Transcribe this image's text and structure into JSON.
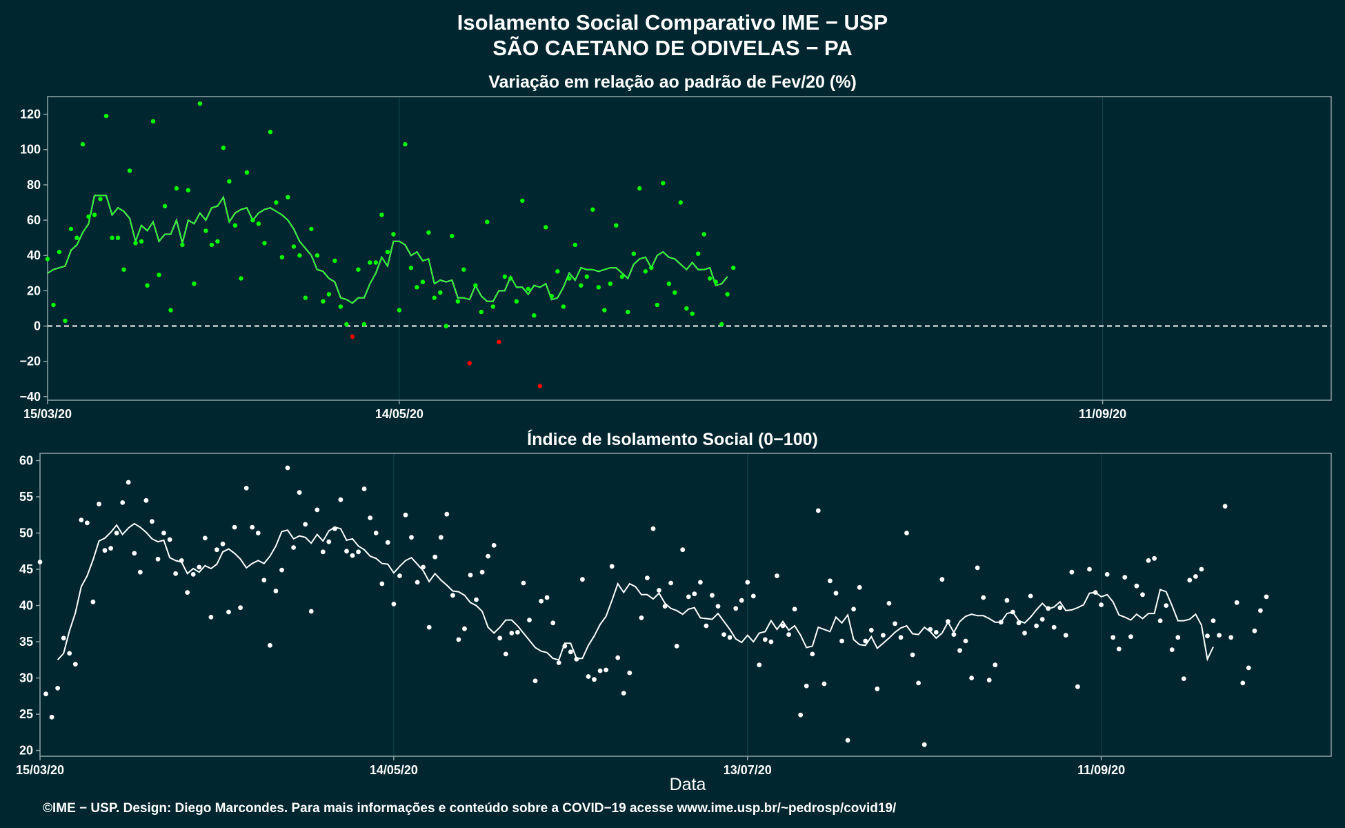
{
  "header": {
    "title_line1": "Isolamento Social Comparativo IME − USP",
    "title_line2": "SÃO CAETANO DE ODIVELAS − PA"
  },
  "footer": {
    "credit": "©IME − USP. Design: Diego Marcondes. Para mais informações e conteúdo sobre a COVID−19 acesse www.ime.usp.br/~pedrosp/covid19/"
  },
  "colors": {
    "background": "#00272f",
    "panel_border": "#8fa3a8",
    "gridline": "#12404a",
    "text": "#ffffff",
    "point_positive": "#00ff00",
    "point_negative": "#ff0000",
    "line_avg": "#ffffff",
    "line_avg_overlay": "#00ff00"
  },
  "chart_data": [
    {
      "type": "scatter",
      "title": "Variação em relação ao padrão de Fev/20 (%)",
      "xlabel": "",
      "ylabel": "",
      "x_range": [
        "2020-03-15",
        "2020-10-20"
      ],
      "ylim": [
        -42,
        130
      ],
      "y_ticks": [
        120,
        100,
        80,
        60,
        40,
        20,
        0,
        -20,
        -40
      ],
      "y_tick_labels": [
        "120",
        "100",
        "80",
        "60",
        "40",
        "20",
        "0",
        "−20",
        "−40"
      ],
      "x_ticks": [
        {
          "date": "2020-03-15",
          "label": "15/03/20"
        },
        {
          "date": "2020-05-14",
          "label": "14/05/20"
        },
        {
          "date": "2020-09-11",
          "label": "11/09/20"
        }
      ],
      "reference_line": {
        "y": 0,
        "style": "dashed"
      },
      "grid": true,
      "start_date": "2020-03-15",
      "series": [
        {
          "kind": "points",
          "values": [
            38,
            12,
            42,
            3,
            55,
            50,
            103,
            62,
            63,
            72,
            119,
            50,
            50,
            32,
            88,
            47,
            48,
            23,
            116,
            29,
            68,
            9,
            78,
            46,
            77,
            24,
            126,
            54,
            46,
            48,
            101,
            82,
            57,
            27,
            87,
            60,
            58,
            47,
            110,
            70,
            39,
            73,
            45,
            40,
            16,
            55,
            40,
            14,
            18,
            37,
            11,
            1,
            -6,
            32,
            1,
            36,
            36,
            63,
            42,
            52,
            9,
            103,
            33,
            22,
            25,
            53,
            16,
            19,
            0,
            51,
            14,
            32,
            -21,
            23,
            8,
            59,
            11,
            -9,
            28,
            27,
            14,
            71,
            21,
            6,
            -34,
            56,
            17,
            31,
            11,
            27,
            46,
            23,
            28,
            66,
            22,
            9,
            24,
            57,
            28,
            8,
            41,
            78,
            31,
            33,
            12,
            81,
            24,
            19,
            70,
            10,
            7,
            41,
            52,
            27,
            25,
            1,
            18,
            33
          ]
        },
        {
          "kind": "moving_average",
          "values": [
            30,
            32,
            33,
            34,
            43,
            46,
            53,
            58,
            74,
            74,
            74,
            63,
            67,
            65,
            61,
            48,
            57,
            54,
            59,
            48,
            52,
            52,
            60,
            47,
            60,
            58,
            64,
            60,
            67,
            68,
            73,
            59,
            64,
            66,
            67,
            60,
            64,
            66,
            67,
            65,
            63,
            60,
            55,
            48,
            44,
            40,
            32,
            31,
            27,
            25,
            16,
            15,
            13,
            16,
            16,
            24,
            30,
            39,
            34,
            48,
            48,
            46,
            40,
            42,
            37,
            38,
            24,
            26,
            25,
            26,
            16,
            16,
            15,
            23,
            17,
            14,
            14,
            20,
            20,
            28,
            22,
            22,
            18,
            23,
            22,
            24,
            15,
            16,
            22,
            30,
            26,
            33,
            32,
            32,
            31,
            32,
            33,
            33,
            30,
            27,
            35,
            38,
            39,
            33,
            40,
            42,
            39,
            38,
            35,
            32,
            36,
            32,
            32,
            33,
            23,
            24,
            28,
            null
          ]
        }
      ]
    },
    {
      "type": "scatter",
      "title": "Índice de Isolamento Social (0−100)",
      "xlabel": "Data",
      "ylabel": "",
      "x_range": [
        "2020-03-15",
        "2020-10-20"
      ],
      "ylim": [
        19.2,
        61
      ],
      "y_ticks": [
        60,
        55,
        50,
        45,
        40,
        35,
        30,
        25,
        20
      ],
      "y_tick_labels": [
        "60",
        "55",
        "50",
        "45",
        "40",
        "35",
        "30",
        "25",
        "20"
      ],
      "x_ticks": [
        {
          "date": "2020-03-15",
          "label": "15/03/20"
        },
        {
          "date": "2020-05-14",
          "label": "14/05/20"
        },
        {
          "date": "2020-07-13",
          "label": "13/07/20"
        },
        {
          "date": "2020-09-11",
          "label": "11/09/20"
        }
      ],
      "grid": true,
      "start_date": "2020-03-15",
      "series": [
        {
          "kind": "points",
          "values": [
            46,
            27.8,
            24.6,
            28.6,
            35.5,
            33.4,
            31.9,
            51.8,
            51.4,
            40.5,
            54,
            47.6,
            47.9,
            50,
            54.2,
            57,
            47.2,
            44.6,
            54.5,
            51.6,
            46.4,
            50,
            49.1,
            44.4,
            46.2,
            41.8,
            44.3,
            45.3,
            49.3,
            38.4,
            47.7,
            48.5,
            39.1,
            50.8,
            39.7,
            56.2,
            50.8,
            50,
            43.5,
            34.5,
            42,
            44.9,
            59,
            48,
            55.6,
            51.2,
            39.2,
            53.2,
            47.4,
            48.8,
            50.6,
            54.6,
            47.5,
            46.9,
            47.4,
            56.1,
            52.1,
            50,
            43,
            48.7,
            40.2,
            44.1,
            52.5,
            49.4,
            43.2,
            45.3,
            37,
            46.7,
            49.4,
            52.6,
            41.4,
            35.3,
            36.8,
            44.2,
            40.8,
            44.6,
            46.8,
            48.3,
            35.5,
            33.3,
            36.2,
            36.3,
            43.1,
            38,
            29.6,
            40.6,
            41.1,
            37.6,
            32.1,
            34.4,
            33.6,
            32.6,
            43.6,
            30.2,
            29.8,
            31,
            31.1,
            45.4,
            32.8,
            27.9,
            30.7,
            null,
            38.3,
            43.8,
            50.6,
            42.1,
            39.9,
            43.1,
            34.4,
            47.7,
            41.2,
            41.6,
            43.2,
            37.2,
            41.4,
            39.9,
            36,
            35.6,
            39.6,
            40.7,
            43.2,
            41.3,
            31.8,
            35.3,
            35,
            44.1,
            37.2,
            36,
            39.5,
            24.9,
            28.9,
            33.3,
            53.1,
            29.2,
            43.4,
            41.7,
            35.1,
            21.4,
            39.5,
            42.5,
            35.1,
            36.6,
            28.5,
            35.9,
            40.3,
            37.5,
            35.6,
            50,
            33.2,
            29.3,
            20.8,
            36.7,
            36.3,
            43.6,
            37.8,
            36,
            33.8,
            35.1,
            30,
            45.2,
            41.1,
            29.7,
            31.8,
            37.7,
            40.7,
            39.1,
            37.6,
            36.2,
            41.3,
            37.2,
            38.1,
            39.6,
            37,
            39.7,
            35.9,
            44.6,
            28.8,
            null,
            45,
            41.8,
            40.1,
            44.3,
            35.6,
            34,
            43.9,
            35.7,
            42.7,
            41.5,
            46.2,
            46.5,
            37.9,
            40,
            33.9,
            35.6,
            29.9,
            43.5,
            44,
            45,
            35.8,
            37.9,
            35.9,
            53.7,
            35.6,
            40.4,
            29.3,
            31.4,
            36.5,
            39.3,
            41.2
          ]
        },
        {
          "kind": "moving_average",
          "values": [
            null,
            null,
            null,
            32.5,
            33.4,
            36.5,
            39,
            42.6,
            44.1,
            46.3,
            48.9,
            49.3,
            50.1,
            51.1,
            49.8,
            50.7,
            51.3,
            50.8,
            50.1,
            49.2,
            48.8,
            49,
            46.6,
            46.2,
            46,
            44.4,
            45.1,
            44.6,
            45.5,
            45.1,
            45.7,
            47.4,
            47.8,
            47.2,
            46.4,
            45.2,
            45.8,
            46.2,
            45.8,
            46.8,
            48.2,
            50.2,
            50.4,
            49.2,
            49.6,
            49.4,
            48.6,
            49.8,
            48.9,
            50.3,
            50.8,
            50.6,
            49,
            49.2,
            48.2,
            47.7,
            46.8,
            46.5,
            45.8,
            45.7,
            44.5,
            45.4,
            46.2,
            46.6,
            45.7,
            44.8,
            43.3,
            44.4,
            43.5,
            42.8,
            42,
            41.9,
            41.4,
            40.4,
            40,
            39.2,
            37,
            36.2,
            37,
            38,
            38,
            37.2,
            36.2,
            35.2,
            34.2,
            33.7,
            33.5,
            32.7,
            32.5,
            34.8,
            34.8,
            32.7,
            32.7,
            34.5,
            35.8,
            37.4,
            38.5,
            40.7,
            43,
            41.8,
            43,
            42.6,
            41.5,
            41.5,
            40.9,
            41.7,
            40.3,
            39.6,
            39.3,
            38.8,
            39.5,
            39.7,
            38.3,
            38.2,
            38.1,
            38.9,
            37.8,
            36.7,
            35.4,
            34.9,
            35.9,
            35,
            36.2,
            36.4,
            37.9,
            36.7,
            37.8,
            36.6,
            37.2,
            35.9,
            34.2,
            34.4,
            37,
            36.7,
            36.4,
            38.4,
            37.6,
            38.7,
            35.3,
            34.6,
            34.5,
            35.7,
            34.1,
            34.8,
            35.5,
            36.3,
            36.9,
            37.2,
            36.1,
            36,
            37,
            36.4,
            35.5,
            36.2,
            37.7,
            36.3,
            37.8,
            38.5,
            38.8,
            38.6,
            38.6,
            38.2,
            37.7,
            37.7,
            38.9,
            39.1,
            37.9,
            37.6,
            38.4,
            39.4,
            40.3,
            39.5,
            39.8,
            40.5,
            39.3,
            39.4,
            39.7,
            40.1,
            41.7,
            41.8,
            41.2,
            41.5,
            40.5,
            38.7,
            38.4,
            38,
            38.8,
            38.2,
            38.9,
            38.9,
            42.2,
            41.9,
            40,
            37.9,
            37.9,
            38.1,
            38.8,
            37.3,
            32.6,
            34.3
          ]
        }
      ]
    }
  ]
}
